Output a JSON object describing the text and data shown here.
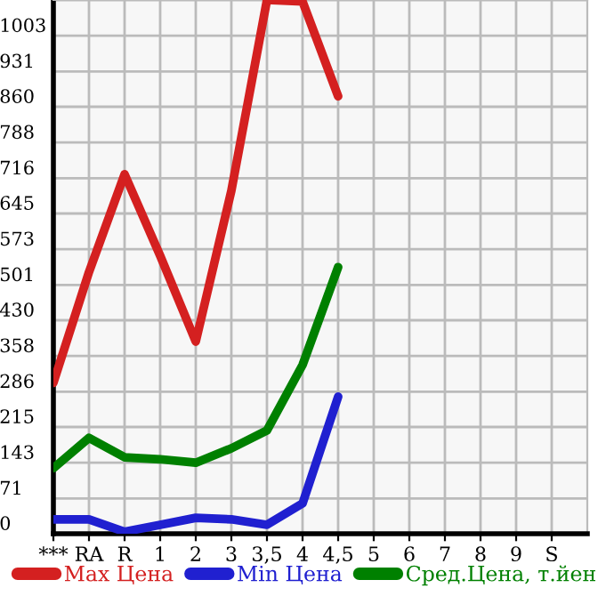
{
  "chart_data": {
    "type": "line",
    "categories": [
      "***",
      "RA",
      "R",
      "1",
      "2",
      "3",
      "3,5",
      "4",
      "4,5",
      "5",
      "6",
      "7",
      "8",
      "9",
      "S"
    ],
    "series": [
      {
        "name": "Max Цена",
        "color": "#d42020",
        "values": [
          304,
          527,
          724,
          560,
          387,
          691,
          1075,
          1072,
          881,
          null,
          null,
          null,
          null,
          null,
          null
        ]
      },
      {
        "name": "Min Цена",
        "color": "#2020d0",
        "values": [
          29,
          29,
          4,
          18,
          32,
          29,
          18,
          61,
          276,
          null,
          null,
          null,
          null,
          null,
          null
        ]
      },
      {
        "name": "Сред.Цена, т.йен",
        "color": "#008000",
        "values": [
          132,
          193,
          154,
          150,
          143,
          172,
          208,
          340,
          537,
          null,
          null,
          null,
          null,
          null,
          null
        ]
      }
    ],
    "ylim": [
      0,
      1075
    ],
    "yticks": [
      0,
      71,
      143,
      215,
      286,
      358,
      430,
      501,
      573,
      645,
      716,
      788,
      860,
      931,
      1003,
      {
        "value": 1075,
        "label": null
      }
    ],
    "grid": true,
    "legend": "bottom",
    "marker": "none",
    "line_style": "solid"
  }
}
